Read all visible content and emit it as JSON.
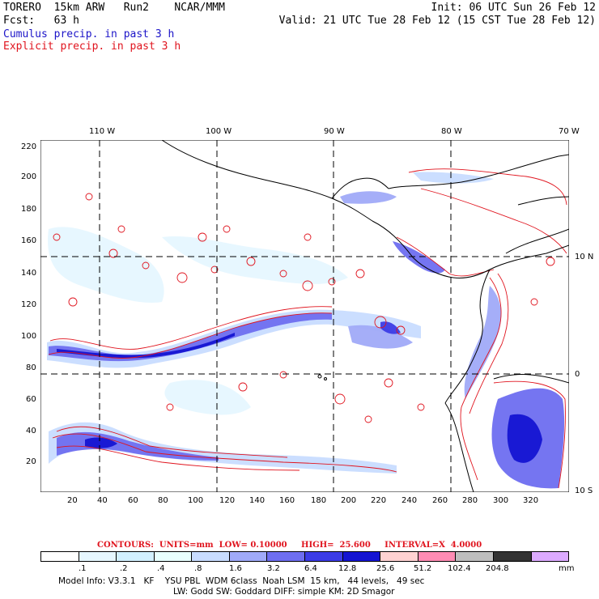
{
  "header": {
    "model": "TORERO  15km ARW   Run2    NCAR/MMM",
    "init": "Init: 06 UTC Sun 26 Feb 12",
    "fcst": "Fcst:   63 h",
    "valid": "Valid: 21 UTC Tue 28 Feb 12 (15 CST Tue 28 Feb 12)",
    "cumulus": "Cumulus precip. in past 3 h",
    "explicit": "Explicit precip. in past 3 h"
  },
  "map": {
    "lon_labels": [
      "110 W",
      "100 W",
      "90 W",
      "80 W",
      "70 W"
    ],
    "lat_labels": [
      "10 N",
      "0",
      "10 S"
    ],
    "x_ticks": [
      "20",
      "40",
      "60",
      "80",
      "100",
      "120",
      "140",
      "160",
      "180",
      "200",
      "220",
      "240",
      "260",
      "280",
      "300",
      "320"
    ],
    "y_ticks": [
      "220",
      "200",
      "180",
      "160",
      "140",
      "120",
      "100",
      "80",
      "60",
      "40",
      "20"
    ]
  },
  "contours_text": "CONTOURS:  UNITS=mm  LOW= 0.10000     HIGH=  25.600     INTERVAL=X  4.0000",
  "colorbar": {
    "labels": [
      ".1",
      ".2",
      ".4",
      ".8",
      "1.6",
      "3.2",
      "6.4",
      "12.8",
      "25.6",
      "51.2",
      "102.4",
      "204.8"
    ],
    "unit": "mm",
    "colors": [
      "#ffffff",
      "#e6f7ff",
      "#d2f0ff",
      "#e8fffe",
      "#c8dcff",
      "#a0aaf8",
      "#6e6ef0",
      "#3c3ce6",
      "#1414d2",
      "#ffd2d2",
      "#ff8cb4",
      "#bebebe",
      "#323232",
      "#dcaaff"
    ]
  },
  "model_info": {
    "line1": "Model Info: V3.3.1   KF    YSU PBL  WDM 6class  Noah LSM  15 km,   44 levels,   49 sec",
    "line2": "LW: Godd SW: Goddard DIFF: simple KM: 2D Smagor"
  }
}
